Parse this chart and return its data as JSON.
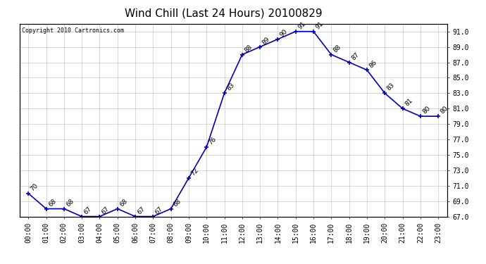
{
  "title": "Wind Chill (Last 24 Hours) 20100829",
  "copyright": "Copyright 2010 Cartronics.com",
  "hours": [
    "00:00",
    "01:00",
    "02:00",
    "03:00",
    "04:00",
    "05:00",
    "06:00",
    "07:00",
    "08:00",
    "09:00",
    "10:00",
    "11:00",
    "12:00",
    "13:00",
    "14:00",
    "15:00",
    "16:00",
    "17:00",
    "18:00",
    "19:00",
    "20:00",
    "21:00",
    "22:00",
    "23:00"
  ],
  "values": [
    70,
    68,
    68,
    67,
    67,
    68,
    67,
    67,
    68,
    72,
    76,
    83,
    88,
    89,
    90,
    91,
    91,
    88,
    87,
    86,
    83,
    81,
    80,
    80
  ],
  "ylim_min": 67.0,
  "ylim_max": 92.0,
  "yticks": [
    67.0,
    69.0,
    71.0,
    73.0,
    75.0,
    77.0,
    79.0,
    81.0,
    83.0,
    85.0,
    87.0,
    89.0,
    91.0
  ],
  "line_color": "#0000bb",
  "marker_color": "#0000bb",
  "bg_color": "#ffffff",
  "grid_color": "#bbbbbb",
  "title_fontsize": 11,
  "label_fontsize": 6.5,
  "copyright_fontsize": 6,
  "tick_fontsize": 7
}
